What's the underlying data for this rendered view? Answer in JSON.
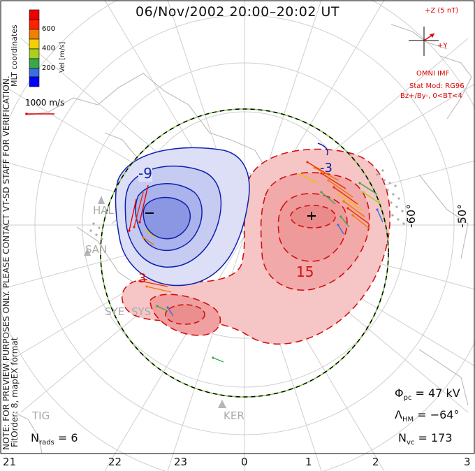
{
  "title": "06/Nov/2002 20:00–20:02 UT",
  "left_notes": {
    "line1": "NOTE: FOR PREVIEW PURPOSES ONLY. PLEASE CONTACT VT-SD STAFF FOR VERIFICATION.",
    "line2": "FitOrder: 8, mapEX format",
    "coords": "MLT coordinates"
  },
  "colorbar": {
    "label": "Vel [m/s]",
    "ticks": [
      "600",
      "400",
      "200"
    ],
    "colors": [
      "#0000ff",
      "#3a6fe0",
      "#3aa84a",
      "#a8d020",
      "#f0d000",
      "#f08000",
      "#ff2000",
      "#ee0000"
    ]
  },
  "vector_scale": "1000 m/s",
  "imf": {
    "z_label": "+Z (5 nT)",
    "y_label": "+Y",
    "source": "OMNI IMF",
    "model_line1": "Stat Mod: RG96",
    "model_line2": "Bz+/By-, 0<BT<4"
  },
  "stats": {
    "phi_symbol": "Φ",
    "phi_sub": "pc",
    "phi_value": "= 47 kV",
    "lambda_symbol": "Λ",
    "lambda_sub": "HM",
    "lambda_value": "= −64°",
    "nvc_symbol": "N",
    "nvc_sub": "vc",
    "nvc_value": "= 173",
    "nrads_symbol": "N",
    "nrads_sub": "rads",
    "nrads_value": "= 6"
  },
  "lat_labels": [
    "-60°",
    "-50°"
  ],
  "mlt_labels": [
    "21",
    "22",
    "23",
    "0",
    "1",
    "2",
    "3"
  ],
  "contour_labels": {
    "neg": "-9",
    "pos": "15",
    "small_neg": "-3",
    "small_pos": "3",
    "minus_mark": "−",
    "plus_mark": "+"
  },
  "stations": [
    "HAL",
    "SAN",
    "SYE",
    "SYS",
    "TIG",
    "KER"
  ],
  "colors": {
    "neg_contour": "#1020b0",
    "pos_contour": "#d41010",
    "neg_fill": "#a8b4ec",
    "pos_fill": "#f3b3b3",
    "hmb": "#7fcf3f",
    "grid": "#c8c8c8",
    "land": "#bdbdbd"
  }
}
